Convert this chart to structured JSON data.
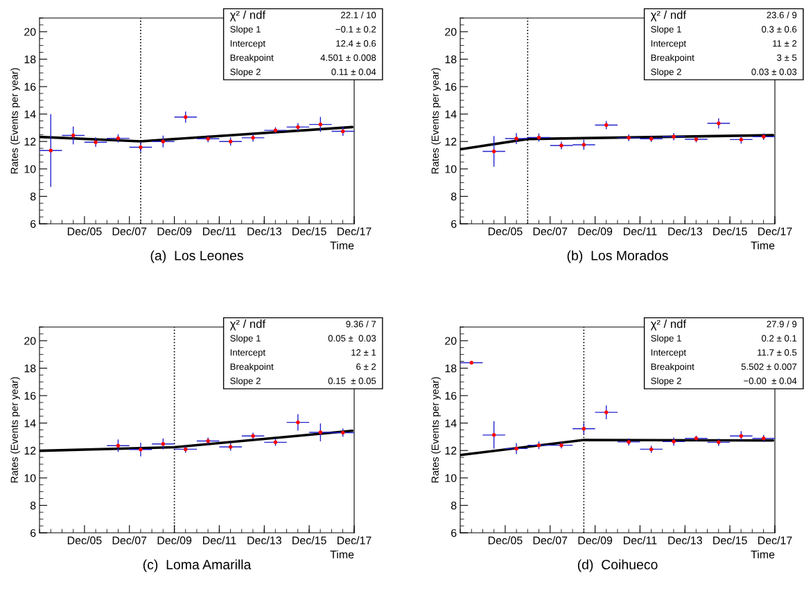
{
  "chart_data": [
    {
      "type": "scatter",
      "title": "(a)  Los Leones",
      "xlabel": "Time",
      "ylabel": "Rates (Events per year)",
      "xlim": [
        "2003-12",
        "2017-12"
      ],
      "ylim": [
        6,
        21
      ],
      "yticks": [
        6,
        8,
        10,
        12,
        14,
        16,
        18,
        20
      ],
      "xticks": [
        {
          "value": "2005-12",
          "label": "Dec/05"
        },
        {
          "value": "2007-12",
          "label": "Dec/07"
        },
        {
          "value": "2009-12",
          "label": "Dec/09"
        },
        {
          "value": "2011-12",
          "label": "Dec/11"
        },
        {
          "value": "2013-12",
          "label": "Dec/13"
        },
        {
          "value": "2015-12",
          "label": "Dec/15"
        },
        {
          "value": "2017-12",
          "label": "Dec/17"
        }
      ],
      "marker": "circle",
      "grid": false,
      "annotations": [
        "χ² / ndf",
        "22.1 / 10",
        "Slope 1",
        "−0.1 ± 0.2",
        "Intercept",
        "12.4 ± 0.6",
        "Breakpoint",
        "4.501 ± 0.008",
        "Slope 2",
        "0.11 ± 0.04"
      ],
      "ref_lines": [
        {
          "axis": "x",
          "value": "2008-06",
          "color": "#000000",
          "line_style": "dotted"
        }
      ],
      "series": [
        {
          "color": "#ff0000",
          "x": [
            "2004-06",
            "2005-06",
            "2006-06",
            "2007-06",
            "2008-06",
            "2009-06",
            "2010-06",
            "2011-06",
            "2012-06",
            "2013-06",
            "2014-06",
            "2015-06",
            "2016-06",
            "2017-06"
          ],
          "values": [
            11.34,
            12.44,
            11.95,
            12.23,
            11.58,
            12.0,
            13.78,
            12.2,
            12.0,
            12.27,
            12.81,
            13.05,
            13.24,
            12.74
          ],
          "errors": [
            2.65,
            0.65,
            0.35,
            0.3,
            0.35,
            0.43,
            0.4,
            0.25,
            0.3,
            0.28,
            0.23,
            0.28,
            0.55,
            0.33
          ],
          "xerrors": [
            183,
            183,
            183,
            183,
            183,
            183,
            183,
            183,
            183,
            183,
            183,
            183,
            183,
            183
          ]
        },
        {
          "type": "line",
          "marker": "none",
          "color": "#000000",
          "x": [
            "2003-12",
            "2008-06",
            "2017-11"
          ],
          "values": [
            12.33,
            12.01,
            13.05
          ]
        }
      ]
    },
    {
      "type": "scatter",
      "title": "(b)  Los Morados",
      "xlabel": "Time",
      "ylabel": "Rates (Events per year)",
      "xlim": [
        "2003-12",
        "2017-12"
      ],
      "ylim": [
        6,
        21
      ],
      "yticks": [
        6,
        8,
        10,
        12,
        14,
        16,
        18,
        20
      ],
      "xticks": [
        {
          "value": "2005-12",
          "label": "Dec/05"
        },
        {
          "value": "2007-12",
          "label": "Dec/07"
        },
        {
          "value": "2009-12",
          "label": "Dec/09"
        },
        {
          "value": "2011-12",
          "label": "Dec/11"
        },
        {
          "value": "2013-12",
          "label": "Dec/13"
        },
        {
          "value": "2015-12",
          "label": "Dec/15"
        },
        {
          "value": "2017-12",
          "label": "Dec/17"
        }
      ],
      "marker": "circle",
      "grid": false,
      "annotations": [
        "χ² / ndf",
        "23.6 / 9",
        "Slope 1",
        "0.3 ± 0.6",
        "Intercept",
        "11 ± 2",
        "Breakpoint",
        "3 ± 5",
        "Slope 2",
        "0.03 ± 0.03"
      ],
      "ref_lines": [
        {
          "axis": "x",
          "value": "2006-12",
          "color": "#000000",
          "line_style": "dotted"
        }
      ],
      "series": [
        {
          "color": "#ff0000",
          "x": [
            "2005-06",
            "2006-06",
            "2007-06",
            "2008-06",
            "2009-06",
            "2010-06",
            "2011-06",
            "2012-06",
            "2013-06",
            "2014-06",
            "2015-06",
            "2016-06",
            "2017-06"
          ],
          "values": [
            11.28,
            12.21,
            12.29,
            11.71,
            11.76,
            13.2,
            12.27,
            12.2,
            12.35,
            12.16,
            13.32,
            12.14,
            12.35
          ],
          "errors": [
            1.12,
            0.4,
            0.3,
            0.28,
            0.37,
            0.3,
            0.25,
            0.23,
            0.26,
            0.22,
            0.37,
            0.3,
            0.24
          ],
          "xerrors": [
            183,
            183,
            183,
            183,
            183,
            183,
            183,
            183,
            183,
            183,
            183,
            183,
            183
          ]
        },
        {
          "type": "line",
          "marker": "none",
          "color": "#000000",
          "x": [
            "2003-12",
            "2006-12",
            "2017-11"
          ],
          "values": [
            11.43,
            12.18,
            12.46
          ]
        }
      ]
    },
    {
      "type": "scatter",
      "title": "(c)  Loma Amarilla",
      "xlabel": "Time",
      "ylabel": "Rates (Events per year)",
      "xlim": [
        "2003-12",
        "2017-12"
      ],
      "ylim": [
        6,
        21
      ],
      "yticks": [
        6,
        8,
        10,
        12,
        14,
        16,
        18,
        20
      ],
      "xticks": [
        {
          "value": "2005-12",
          "label": "Dec/05"
        },
        {
          "value": "2007-12",
          "label": "Dec/07"
        },
        {
          "value": "2009-12",
          "label": "Dec/09"
        },
        {
          "value": "2011-12",
          "label": "Dec/11"
        },
        {
          "value": "2013-12",
          "label": "Dec/13"
        },
        {
          "value": "2015-12",
          "label": "Dec/15"
        },
        {
          "value": "2017-12",
          "label": "Dec/17"
        }
      ],
      "marker": "circle",
      "grid": false,
      "annotations": [
        "χ² / ndf",
        "9.36 / 7",
        "Slope 1",
        "0.05 ±  0.03",
        "Intercept",
        "12 ± 1",
        "Breakpoint",
        "6 ± 2",
        "Slope 2",
        "0.15  ± 0.05"
      ],
      "ref_lines": [
        {
          "axis": "x",
          "value": "2009-12",
          "color": "#000000",
          "line_style": "dotted"
        }
      ],
      "series": [
        {
          "color": "#ff0000",
          "x": [
            "2007-06",
            "2008-06",
            "2009-06",
            "2010-06",
            "2011-06",
            "2012-06",
            "2013-06",
            "2014-06",
            "2015-06",
            "2016-06",
            "2017-06"
          ],
          "values": [
            12.35,
            12.07,
            12.48,
            12.09,
            12.69,
            12.26,
            13.06,
            12.6,
            14.05,
            13.32,
            13.3
          ],
          "errors": [
            0.45,
            0.5,
            0.4,
            0.26,
            0.25,
            0.28,
            0.24,
            0.26,
            0.6,
            0.65,
            0.3
          ],
          "xerrors": [
            183,
            183,
            183,
            183,
            183,
            183,
            183,
            183,
            183,
            183,
            183
          ]
        },
        {
          "type": "line",
          "marker": "none",
          "color": "#000000",
          "x": [
            "2003-12",
            "2009-12",
            "2017-11"
          ],
          "values": [
            11.98,
            12.24,
            13.44
          ]
        }
      ]
    },
    {
      "type": "scatter",
      "title": "(d)  Coihueco",
      "xlabel": "Time",
      "ylabel": "Rates (Events per year)",
      "xlim": [
        "2003-12",
        "2017-12"
      ],
      "ylim": [
        6,
        21
      ],
      "yticks": [
        6,
        8,
        10,
        12,
        14,
        16,
        18,
        20
      ],
      "xticks": [
        {
          "value": "2005-12",
          "label": "Dec/05"
        },
        {
          "value": "2007-12",
          "label": "Dec/07"
        },
        {
          "value": "2009-12",
          "label": "Dec/09"
        },
        {
          "value": "2011-12",
          "label": "Dec/11"
        },
        {
          "value": "2013-12",
          "label": "Dec/13"
        },
        {
          "value": "2015-12",
          "label": "Dec/15"
        },
        {
          "value": "2017-12",
          "label": "Dec/17"
        }
      ],
      "marker": "circle",
      "grid": false,
      "annotations": [
        "χ² / ndf",
        "27.9 / 9",
        "Slope 1",
        "0.2 ± 0.1",
        "Intercept",
        "11.7 ± 0.5",
        "Breakpoint",
        "5.502 ± 0.007",
        "Slope 2",
        "−0.00  ± 0.04"
      ],
      "ref_lines": [
        {
          "axis": "x",
          "value": "2009-06",
          "color": "#000000",
          "line_style": "dotted"
        }
      ],
      "series": [
        {
          "color": "#ff0000",
          "x": [
            "2004-06",
            "2005-06",
            "2006-06",
            "2007-06",
            "2008-06",
            "2009-06",
            "2010-06",
            "2011-06",
            "2012-06",
            "2013-06",
            "2014-06",
            "2015-06",
            "2016-06",
            "2017-06"
          ],
          "values": [
            18.4,
            13.13,
            12.14,
            12.38,
            12.38,
            13.59,
            14.78,
            12.62,
            12.09,
            12.65,
            12.88,
            12.6,
            13.06,
            12.88
          ],
          "errors": [
            null,
            1.0,
            0.4,
            0.28,
            0.23,
            0.42,
            0.5,
            0.26,
            0.26,
            0.3,
            0.2,
            0.26,
            0.35,
            0.26
          ],
          "xerrors": [
            183,
            183,
            183,
            183,
            183,
            183,
            183,
            183,
            183,
            183,
            183,
            183,
            183,
            183
          ]
        },
        {
          "type": "line",
          "marker": "none",
          "color": "#000000",
          "x": [
            "2003-12",
            "2009-06",
            "2017-11"
          ],
          "values": [
            11.67,
            12.77,
            12.73
          ]
        }
      ]
    }
  ]
}
